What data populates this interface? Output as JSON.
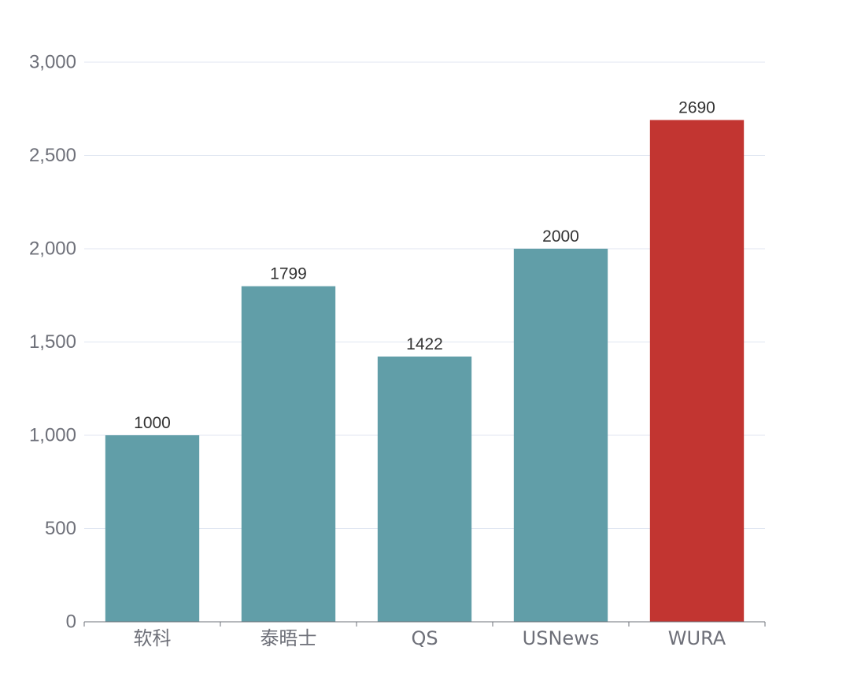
{
  "chart_data": {
    "type": "bar",
    "categories": [
      "软科",
      "泰晤士",
      "QS",
      "USNews",
      "WURA"
    ],
    "values": [
      1000,
      1799,
      1422,
      2000,
      2690
    ],
    "value_labels": [
      "1000",
      "1799",
      "1422",
      "2000",
      "2690"
    ],
    "bar_colors": [
      "#619ea8",
      "#619ea8",
      "#619ea8",
      "#619ea8",
      "#c23531"
    ],
    "ylim": [
      0,
      3000
    ],
    "yticks": [
      0,
      500,
      1000,
      1500,
      2000,
      2500,
      3000
    ],
    "ytick_labels": [
      "0",
      "500",
      "1,000",
      "1,500",
      "2,000",
      "2,500",
      "3,000"
    ],
    "grid": true,
    "title": "",
    "xlabel": "",
    "ylabel": ""
  }
}
